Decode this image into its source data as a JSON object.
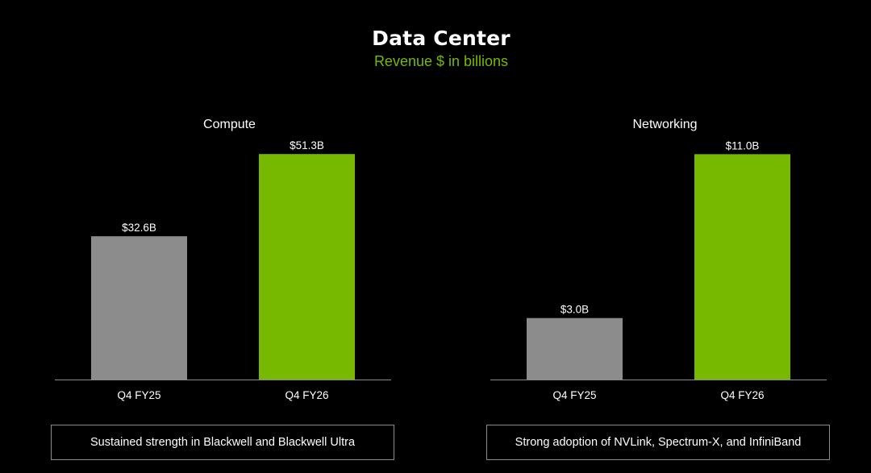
{
  "title": "Data Center",
  "subtitle": "Revenue $ in billions",
  "colors": {
    "background": "#000000",
    "prior": "#8c8c8c",
    "current": "#76b900",
    "text": "#ffffff",
    "axis": "#8c8c8c"
  },
  "chart_data": [
    {
      "type": "bar",
      "title": "Compute",
      "categories": [
        "Q4 FY25",
        "Q4 FY26"
      ],
      "values": [
        32.6,
        51.3
      ],
      "labels": [
        "$32.6B",
        "$51.3B"
      ],
      "ylim": [
        0,
        55
      ]
    },
    {
      "type": "bar",
      "title": "Networking",
      "categories": [
        "Q4 FY25",
        "Q4 FY26"
      ],
      "values": [
        3.0,
        11.0
      ],
      "labels": [
        "$3.0B",
        "$11.0B"
      ],
      "ylim": [
        0,
        11.8
      ]
    }
  ],
  "captions": [
    "Sustained strength in Blackwell and Blackwell Ultra",
    "Strong adoption of NVLink, Spectrum-X, and InfiniBand"
  ]
}
